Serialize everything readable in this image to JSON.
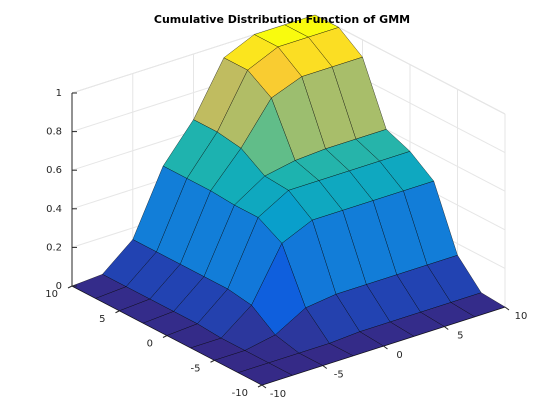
{
  "chart_data": {
    "type": "surface",
    "title": "Cumulative Distribution Function of GMM",
    "x": [
      -10,
      -7.5,
      -5,
      -2.5,
      0,
      2.5,
      5,
      7.5,
      10
    ],
    "y": [
      -10,
      -7.5,
      -5,
      -2.5,
      0,
      2.5,
      5,
      7.5,
      10
    ],
    "z": [
      [
        0,
        0,
        0,
        0,
        0,
        0,
        0,
        0,
        0
      ],
      [
        0,
        0,
        0,
        0,
        0.01,
        0.01,
        0.01,
        0.01,
        0.01
      ],
      [
        0,
        0,
        0.03,
        0.12,
        0.14,
        0.14,
        0.14,
        0.14,
        0.14
      ],
      [
        0,
        0,
        0.12,
        0.39,
        0.46,
        0.46,
        0.46,
        0.46,
        0.46
      ],
      [
        0,
        0.01,
        0.14,
        0.46,
        0.55,
        0.55,
        0.55,
        0.55,
        0.55
      ],
      [
        0,
        0.01,
        0.14,
        0.46,
        0.56,
        0.59,
        0.6,
        0.6,
        0.6
      ],
      [
        0,
        0.01,
        0.14,
        0.47,
        0.64,
        0.85,
        0.91,
        0.91,
        0.91
      ],
      [
        0,
        0.01,
        0.14,
        0.47,
        0.66,
        0.93,
        1,
        1,
        1
      ],
      [
        0,
        0.01,
        0.14,
        0.47,
        0.66,
        0.93,
        1,
        1,
        1
      ]
    ],
    "xlim": [
      -10,
      10
    ],
    "ylim": [
      -10,
      10
    ],
    "zlim": [
      0,
      1
    ],
    "xticks": [
      -10,
      -5,
      0,
      5,
      10
    ],
    "yticks": [
      -10,
      -5,
      0,
      5,
      10
    ],
    "zticks": [
      0,
      0.2,
      0.4,
      0.6,
      0.8,
      1
    ],
    "grid": true,
    "colormap": "parula"
  }
}
